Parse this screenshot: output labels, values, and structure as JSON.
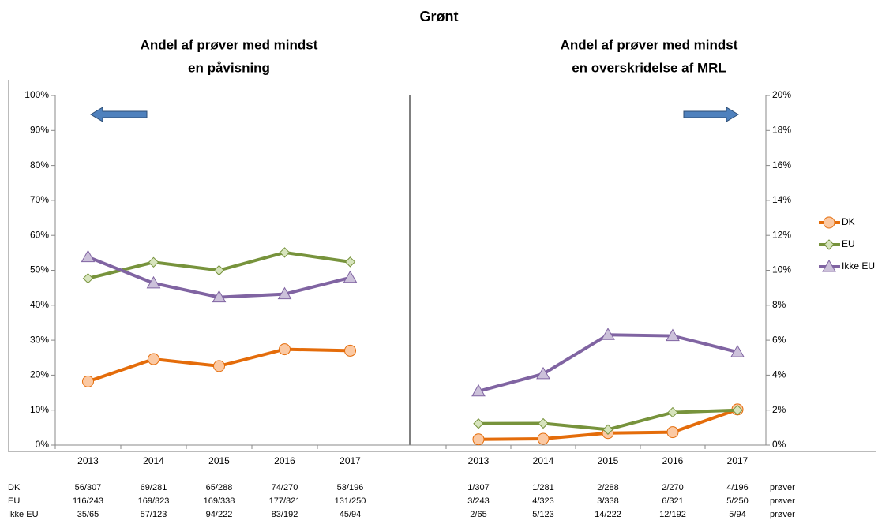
{
  "title": "Grønt",
  "unit_label": "prøver",
  "chart_data": [
    {
      "type": "line",
      "title": [
        "Andel af prøver med mindst",
        "en påvisning"
      ],
      "categories": [
        "2013",
        "2014",
        "2015",
        "2016",
        "2017"
      ],
      "ylim": [
        0,
        100
      ],
      "yticks": [
        {
          "value": 0,
          "label": "0%"
        },
        {
          "value": 10,
          "label": "10%"
        },
        {
          "value": 20,
          "label": "20%"
        },
        {
          "value": 30,
          "label": "30%"
        },
        {
          "value": 40,
          "label": "40%"
        },
        {
          "value": 50,
          "label": "50%"
        },
        {
          "value": 60,
          "label": "60%"
        },
        {
          "value": 70,
          "label": "70%"
        },
        {
          "value": 80,
          "label": "80%"
        },
        {
          "value": 90,
          "label": "90%"
        },
        {
          "value": 100,
          "label": "100%"
        }
      ],
      "axis_side": "left",
      "series": [
        {
          "name": "DK",
          "color": "#e46c0a",
          "marker": "circle",
          "marker_fill": "#fbc9a3",
          "values": [
            18.2,
            24.6,
            22.6,
            27.4,
            27.0
          ],
          "samples": [
            "56/307",
            "69/281",
            "65/288",
            "74/270",
            "53/196"
          ]
        },
        {
          "name": "EU",
          "color": "#77933c",
          "marker": "diamond",
          "marker_fill": "#d7e4bd",
          "values": [
            47.7,
            52.3,
            50.0,
            55.1,
            52.4
          ],
          "samples": [
            "116/243",
            "169/323",
            "169/338",
            "177/321",
            "131/250"
          ]
        },
        {
          "name": "Ikke EU",
          "color": "#8064a2",
          "marker": "triangle",
          "marker_fill": "#ccc1da",
          "values": [
            53.8,
            46.3,
            42.3,
            43.2,
            47.9
          ],
          "samples": [
            "35/65",
            "57/123",
            "94/222",
            "83/192",
            "45/94"
          ]
        }
      ]
    },
    {
      "type": "line",
      "title": [
        "Andel af prøver med mindst",
        "en overskridelse af MRL"
      ],
      "categories": [
        "2013",
        "2014",
        "2015",
        "2016",
        "2017"
      ],
      "ylim": [
        0,
        20
      ],
      "yticks": [
        {
          "value": 0,
          "label": "0%"
        },
        {
          "value": 2,
          "label": "2%"
        },
        {
          "value": 4,
          "label": "4%"
        },
        {
          "value": 6,
          "label": "6%"
        },
        {
          "value": 8,
          "label": "8%"
        },
        {
          "value": 10,
          "label": "10%"
        },
        {
          "value": 12,
          "label": "12%"
        },
        {
          "value": 14,
          "label": "14%"
        },
        {
          "value": 16,
          "label": "16%"
        },
        {
          "value": 18,
          "label": "18%"
        },
        {
          "value": 20,
          "label": "20%"
        }
      ],
      "axis_side": "right",
      "legend": "right",
      "series": [
        {
          "name": "DK",
          "color": "#e46c0a",
          "marker": "circle",
          "marker_fill": "#fbc9a3",
          "values": [
            0.33,
            0.36,
            0.69,
            0.74,
            2.04
          ],
          "samples": [
            "1/307",
            "1/281",
            "2/288",
            "2/270",
            "4/196"
          ]
        },
        {
          "name": "EU",
          "color": "#77933c",
          "marker": "diamond",
          "marker_fill": "#d7e4bd",
          "values": [
            1.23,
            1.24,
            0.89,
            1.87,
            2.0
          ],
          "samples": [
            "3/243",
            "4/323",
            "3/338",
            "6/321",
            "5/250"
          ]
        },
        {
          "name": "Ikke EU",
          "color": "#8064a2",
          "marker": "triangle",
          "marker_fill": "#ccc1da",
          "values": [
            3.08,
            4.07,
            6.31,
            6.25,
            5.32
          ],
          "samples": [
            "2/65",
            "5/123",
            "14/222",
            "12/192",
            "5/94"
          ]
        }
      ]
    }
  ]
}
